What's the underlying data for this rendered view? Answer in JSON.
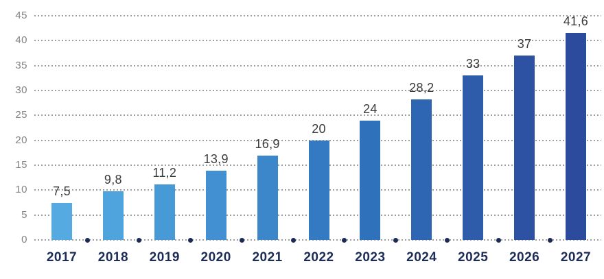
{
  "chart_data": {
    "type": "bar",
    "title": "",
    "xlabel": "",
    "ylabel": "",
    "categories": [
      "2017",
      "2018",
      "2019",
      "2020",
      "2021",
      "2022",
      "2023",
      "2024",
      "2025",
      "2026",
      "2027"
    ],
    "values": [
      7.5,
      9.8,
      11.2,
      13.9,
      16.9,
      20,
      24,
      28.2,
      33,
      37,
      41.6
    ],
    "value_labels": [
      "7,5",
      "9,8",
      "11,2",
      "13,9",
      "16,9",
      "20",
      "24",
      "28,2",
      "33",
      "37",
      "41,6"
    ],
    "bar_colors": [
      "#55aae1",
      "#50a4dd",
      "#489ad7",
      "#4290d1",
      "#3c86ca",
      "#347ac2",
      "#2f71bb",
      "#2f66b3",
      "#2e5caa",
      "#2d52a3",
      "#2c4b9d"
    ],
    "ylim": [
      0,
      45
    ],
    "ytick_step": 5,
    "ytick_labels": [
      "0",
      "5",
      "10",
      "15",
      "20",
      "25",
      "30",
      "35",
      "40",
      "45"
    ],
    "grid": "horizontal-dotted",
    "legend": "none",
    "colors": {
      "gridline": "#9b9da0",
      "ytick_text": "#7f8286",
      "value_label_text": "#3b3b3c",
      "year_label_text": "#1c2c56",
      "baseline_dot": "#1b2a56",
      "background": "#ffffff"
    }
  }
}
